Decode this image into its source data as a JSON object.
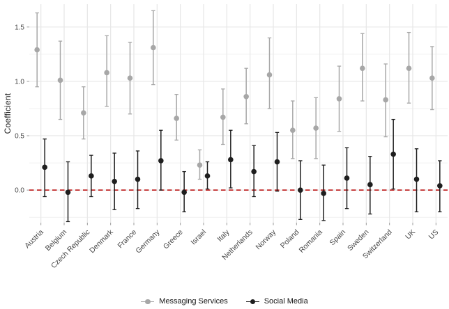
{
  "chart_data": {
    "type": "pointrange",
    "title": "",
    "xlabel": "",
    "ylabel": "Coefficient",
    "ylim": [
      -0.3,
      1.71
    ],
    "yticks": [
      0.0,
      0.5,
      1.0,
      1.5
    ],
    "ytick_labels": [
      "0.0",
      "0.5",
      "1.0",
      "1.5"
    ],
    "minor_gridlines": [
      -0.25,
      0.25,
      0.75,
      1.25
    ],
    "grid": "on",
    "legend_position": "bottom",
    "reference_line": {
      "y": 0.0,
      "style": "dashed",
      "color": "#c02626"
    },
    "categories": [
      "Austria",
      "Belgium",
      "Czech Republic",
      "Denmark",
      "France",
      "Germany",
      "Greece",
      "Israel",
      "Italy",
      "Netherlands",
      "Norway",
      "Poland",
      "Romania",
      "Spain",
      "Sweden",
      "Switzerland",
      "UK",
      "US"
    ],
    "series": [
      {
        "name": "Messaging Services",
        "color": "#a7a7a7",
        "points": [
          {
            "y": 1.29,
            "lo": 0.95,
            "hi": 1.63
          },
          {
            "y": 1.01,
            "lo": 0.65,
            "hi": 1.37
          },
          {
            "y": 0.71,
            "lo": 0.47,
            "hi": 0.95
          },
          {
            "y": 1.08,
            "lo": 0.77,
            "hi": 1.42
          },
          {
            "y": 1.03,
            "lo": 0.7,
            "hi": 1.36
          },
          {
            "y": 1.31,
            "lo": 0.97,
            "hi": 1.65
          },
          {
            "y": 0.66,
            "lo": 0.46,
            "hi": 0.88
          },
          {
            "y": 0.23,
            "lo": 0.1,
            "hi": 0.37
          },
          {
            "y": 0.67,
            "lo": 0.42,
            "hi": 0.93
          },
          {
            "y": 0.86,
            "lo": 0.61,
            "hi": 1.12
          },
          {
            "y": 1.06,
            "lo": 0.75,
            "hi": 1.4
          },
          {
            "y": 0.55,
            "lo": 0.29,
            "hi": 0.82
          },
          {
            "y": 0.57,
            "lo": 0.29,
            "hi": 0.85
          },
          {
            "y": 0.84,
            "lo": 0.54,
            "hi": 1.14
          },
          {
            "y": 1.12,
            "lo": 0.82,
            "hi": 1.44
          },
          {
            "y": 0.83,
            "lo": 0.49,
            "hi": 1.16
          },
          {
            "y": 1.12,
            "lo": 0.8,
            "hi": 1.45
          },
          {
            "y": 1.03,
            "lo": 0.74,
            "hi": 1.32
          }
        ]
      },
      {
        "name": "Social Media",
        "color": "#1e1e1e",
        "points": [
          {
            "y": 0.21,
            "lo": -0.06,
            "hi": 0.47
          },
          {
            "y": -0.02,
            "lo": -0.29,
            "hi": 0.26
          },
          {
            "y": 0.13,
            "lo": -0.06,
            "hi": 0.32
          },
          {
            "y": 0.08,
            "lo": -0.18,
            "hi": 0.34
          },
          {
            "y": 0.1,
            "lo": -0.17,
            "hi": 0.36
          },
          {
            "y": 0.27,
            "lo": 0.0,
            "hi": 0.55
          },
          {
            "y": -0.02,
            "lo": -0.2,
            "hi": 0.17
          },
          {
            "y": 0.13,
            "lo": 0.01,
            "hi": 0.26
          },
          {
            "y": 0.28,
            "lo": 0.02,
            "hi": 0.55
          },
          {
            "y": 0.17,
            "lo": -0.06,
            "hi": 0.41
          },
          {
            "y": 0.26,
            "lo": -0.01,
            "hi": 0.53
          },
          {
            "y": 0.0,
            "lo": -0.27,
            "hi": 0.27
          },
          {
            "y": -0.03,
            "lo": -0.28,
            "hi": 0.23
          },
          {
            "y": 0.11,
            "lo": -0.17,
            "hi": 0.39
          },
          {
            "y": 0.05,
            "lo": -0.22,
            "hi": 0.31
          },
          {
            "y": 0.33,
            "lo": 0.01,
            "hi": 0.65
          },
          {
            "y": 0.1,
            "lo": -0.2,
            "hi": 0.38
          },
          {
            "y": 0.04,
            "lo": -0.2,
            "hi": 0.27
          }
        ]
      }
    ],
    "colors": {
      "grid_major": "#e7e7e7",
      "grid_minor": "#f1f1f1",
      "tick": "#9a9a9a",
      "tick_label": "#474747",
      "background": "#ffffff"
    }
  }
}
